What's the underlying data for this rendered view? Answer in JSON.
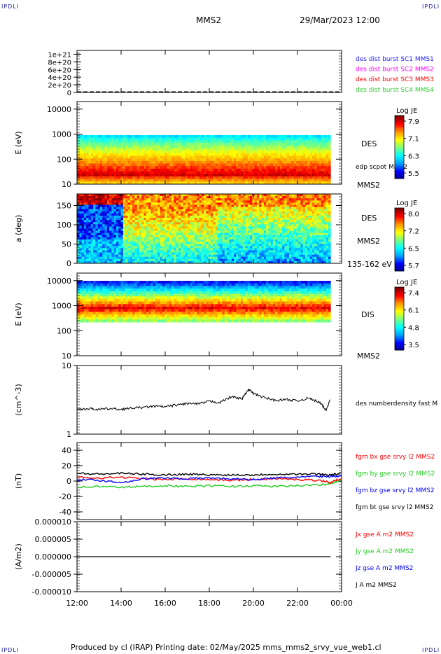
{
  "corners": {
    "tl": "IPDLI",
    "tr": "IPDLI",
    "bl": "IPDLI",
    "br": "IPDLI"
  },
  "header": {
    "mission": "MMS2",
    "datetime": "29/Mar/2023 12:00"
  },
  "footer": {
    "text": "Produced by cl (IRAP)   Printing date: 02/May/2025   mms_mms2_srvy_vue_web1.cl"
  },
  "colors": {
    "mms1": "#1a1aff",
    "mms2": "#ff00ff",
    "mms3": "#ff0000",
    "mms4": "#33cc33",
    "bx": "#ff0000",
    "by": "#22cc22",
    "bz": "#0000ff",
    "bt": "#000000",
    "jx": "#ff0000",
    "jy": "#22cc22",
    "jz": "#0000ff",
    "j": "#000000"
  },
  "chart_data": [
    {
      "type": "line",
      "panel": "dist_burst",
      "yticks": [
        "1e+21",
        "8e+20",
        "6e+20",
        "4e+20",
        "2e+20",
        "0"
      ],
      "ylim": [
        0,
        1.1e+21
      ],
      "series": [
        {
          "name": "des dist burst SC1 MMS1",
          "color": "mms1",
          "values": []
        },
        {
          "name": "des dist burst SC2 MMS2",
          "color": "mms2",
          "values": []
        },
        {
          "name": "des dist burst SC3 MMS3",
          "color": "mms3",
          "values": []
        },
        {
          "name": "des dist burst SC4 MMS4",
          "color": "mms4",
          "values": []
        }
      ]
    },
    {
      "type": "heatmap",
      "panel": "des_energy",
      "ylabel": "E (eV)",
      "scale": "log",
      "ylim": [
        10,
        20000
      ],
      "yticks": [
        "10000",
        "1000",
        "100",
        "10"
      ],
      "side_labels": [
        "DES",
        "edp scpot MMS2",
        "MMS2"
      ],
      "colorbar": {
        "title": "Log JE",
        "ticks": [
          "7.9",
          "7.1",
          "6.3",
          "5.5"
        ],
        "range": [
          5.5,
          8.0
        ]
      }
    },
    {
      "type": "heatmap",
      "panel": "des_pitch",
      "ylabel": "a (deg)",
      "ylim": [
        0,
        180
      ],
      "yticks": [
        "150",
        "100",
        "50",
        "0"
      ],
      "side_labels": [
        "DES",
        "MMS2",
        "135-162 eV"
      ],
      "colorbar": {
        "title": "Log JE",
        "ticks": [
          "8.0",
          "7.2",
          "6.5",
          "5.7"
        ],
        "range": [
          5.7,
          8.1
        ]
      }
    },
    {
      "type": "heatmap",
      "panel": "dis_energy",
      "ylabel": "E (eV)",
      "scale": "log",
      "ylim": [
        10,
        20000
      ],
      "yticks": [
        "10000",
        "1000",
        "100",
        "10"
      ],
      "side_labels": [
        "DIS",
        "MMS2"
      ],
      "colorbar": {
        "title": "Log JE",
        "ticks": [
          "7.4",
          "6.1",
          "4.8",
          "3.5"
        ],
        "range": [
          3.5,
          7.6
        ]
      }
    },
    {
      "type": "line",
      "panel": "density",
      "ylabel": "(cm^-3)",
      "scale": "log",
      "ylim": [
        1,
        10
      ],
      "yticks": [
        "10",
        "1"
      ],
      "x_hours": [
        12.0,
        12.5,
        13.0,
        13.5,
        14.0,
        14.5,
        15.0,
        15.5,
        16.0,
        16.5,
        17.0,
        17.5,
        18.0,
        18.5,
        19.0,
        19.5,
        19.8,
        20.0,
        20.5,
        21.0,
        21.5,
        22.0,
        22.5,
        23.0,
        23.3,
        23.5
      ],
      "series": [
        {
          "name": "des numberdensity fast M",
          "values": [
            2.3,
            2.35,
            2.3,
            2.35,
            2.3,
            2.4,
            2.45,
            2.55,
            2.5,
            2.65,
            2.8,
            2.75,
            3.0,
            2.9,
            3.5,
            3.3,
            4.5,
            3.9,
            3.4,
            3.1,
            3.2,
            3.05,
            3.35,
            2.9,
            2.2,
            3.3
          ]
        }
      ]
    },
    {
      "type": "line",
      "panel": "fgm",
      "ylabel": "(nT)",
      "ylim": [
        -50,
        50
      ],
      "yticks": [
        "40",
        "20",
        "0",
        "-20",
        "-40"
      ],
      "x_hours": [
        12,
        13,
        14,
        15,
        16,
        17,
        18,
        19,
        20,
        21,
        22,
        23,
        23.5,
        24
      ],
      "series": [
        {
          "name": "fgm bx gse srvy l2 MMS2",
          "color": "bx",
          "values": [
            5,
            4,
            5,
            3,
            2,
            3,
            2,
            1,
            2,
            3,
            2,
            1,
            -2,
            4
          ]
        },
        {
          "name": "fgm by gse srvy l2 MMS2",
          "color": "by",
          "values": [
            -8,
            -7,
            -8,
            -7,
            -6,
            -7,
            -6,
            -7,
            -6,
            -7,
            -6,
            -5,
            -3,
            2
          ]
        },
        {
          "name": "fgm bz gse srvy l2 MMS2",
          "color": "bz",
          "values": [
            2,
            1,
            -2,
            3,
            4,
            3,
            4,
            3,
            2,
            4,
            5,
            6,
            6,
            7
          ]
        },
        {
          "name": "fgm bt gse srvy l2 MMS2",
          "color": "bt",
          "values": [
            10,
            9,
            10,
            9,
            8,
            9,
            8,
            8,
            8,
            9,
            9,
            9,
            8,
            10
          ]
        }
      ]
    },
    {
      "type": "line",
      "panel": "current",
      "ylabel": "(A/m2)",
      "ylim": [
        -1e-05,
        1e-05
      ],
      "yticks": [
        "0.000010",
        "0.000005",
        "0.000000",
        "-0.000005",
        "-0.000010"
      ],
      "x_hours": [
        12,
        24
      ],
      "series": [
        {
          "name": "Jx gse A m2 MMS2",
          "color": "jx",
          "values": []
        },
        {
          "name": "Jy gse A m2 MMS2",
          "color": "jy",
          "values": []
        },
        {
          "name": "Jz gse A m2 MMS2",
          "color": "jz",
          "values": []
        },
        {
          "name": "J A m2 MMS2",
          "color": "j",
          "values": [
            0,
            0
          ]
        }
      ]
    }
  ],
  "xaxis": {
    "ticks": [
      "12:00",
      "14:00",
      "16:00",
      "18:00",
      "20:00",
      "22:00",
      "00:00"
    ],
    "range_hours": [
      12,
      24
    ]
  }
}
